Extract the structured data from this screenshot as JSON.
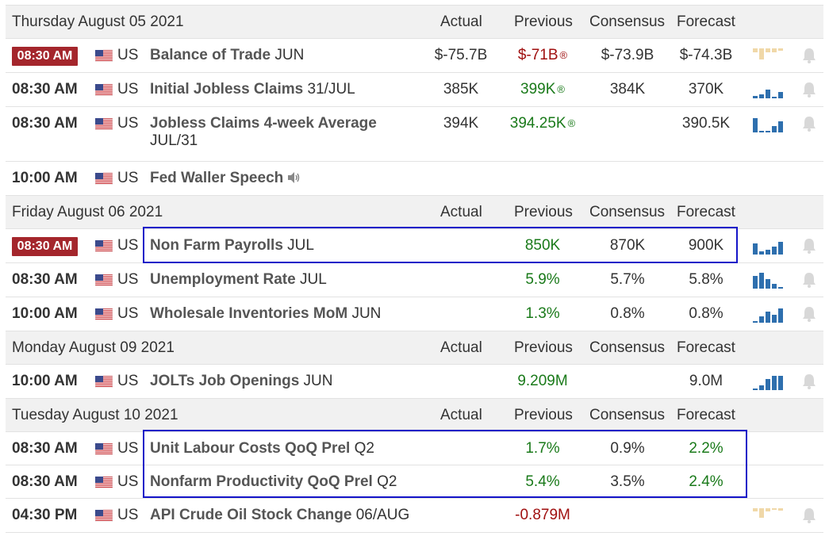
{
  "columns": {
    "actual": "Actual",
    "previous": "Previous",
    "consensus": "Consensus",
    "forecast": "Forecast"
  },
  "days": [
    {
      "date": "Thursday August 05 2021",
      "events": [
        {
          "time": "08:30 AM",
          "badge": true,
          "country": "US",
          "name": "Balance of Trade",
          "period": "JUN",
          "actual": "$-75.7B",
          "actual_color": "dark",
          "previous": "$-71B",
          "previous_color": "red",
          "revised": "®",
          "consensus": "$-73.9B",
          "forecast": "$-74.3B",
          "forecast_color": "dark",
          "spark": "beige-neg",
          "bell": true
        },
        {
          "time": "08:30 AM",
          "badge": false,
          "country": "US",
          "name": "Initial Jobless Claims",
          "period": "31/JUL",
          "actual": "385K",
          "actual_color": "dark",
          "previous": "399K",
          "previous_color": "green",
          "revised": "®",
          "consensus": "384K",
          "forecast": "370K",
          "forecast_color": "dark",
          "spark": "blue-a",
          "bell": true
        },
        {
          "time": "08:30 AM",
          "badge": false,
          "country": "US",
          "name": "Jobless Claims 4-week Average",
          "period": "JUL/31",
          "actual": "394K",
          "actual_color": "dark",
          "previous": "394.25K",
          "previous_color": "green",
          "revised": "®",
          "consensus": "",
          "forecast": "390.5K",
          "forecast_color": "dark",
          "spark": "blue-b",
          "bell": true,
          "tall": true
        },
        {
          "time": "10:00 AM",
          "badge": false,
          "country": "US",
          "name": "Fed Waller Speech",
          "period": "",
          "actual": "",
          "previous": "",
          "consensus": "",
          "forecast": "",
          "speaker": true,
          "spark": "",
          "bell": false
        }
      ]
    },
    {
      "date": "Friday August 06 2021",
      "events": [
        {
          "time": "08:30 AM",
          "badge": true,
          "country": "US",
          "name": "Non Farm Payrolls",
          "period": "JUL",
          "actual": "",
          "previous": "850K",
          "previous_color": "green",
          "consensus": "870K",
          "forecast": "900K",
          "forecast_color": "dark",
          "spark": "blue-c",
          "bell": true
        },
        {
          "time": "08:30 AM",
          "badge": false,
          "country": "US",
          "name": "Unemployment Rate",
          "period": "JUL",
          "actual": "",
          "previous": "5.9%",
          "previous_color": "green",
          "consensus": "5.7%",
          "forecast": "5.8%",
          "forecast_color": "dark",
          "spark": "blue-d",
          "bell": true
        },
        {
          "time": "10:00 AM",
          "badge": false,
          "country": "US",
          "name": "Wholesale Inventories MoM",
          "period": "JUN",
          "actual": "",
          "previous": "1.3%",
          "previous_color": "green",
          "consensus": "0.8%",
          "forecast": "0.8%",
          "forecast_color": "dark",
          "spark": "blue-e",
          "bell": true
        }
      ]
    },
    {
      "date": "Monday August 09 2021",
      "events": [
        {
          "time": "10:00 AM",
          "badge": false,
          "country": "US",
          "name": "JOLTs Job Openings",
          "period": "JUN",
          "actual": "",
          "previous": "9.209M",
          "previous_color": "green",
          "consensus": "",
          "forecast": "9.0M",
          "forecast_color": "dark",
          "spark": "blue-f",
          "bell": true
        }
      ]
    },
    {
      "date": "Tuesday August 10 2021",
      "events": [
        {
          "time": "08:30 AM",
          "badge": false,
          "country": "US",
          "name": "Unit Labour Costs QoQ Prel",
          "period": "Q2",
          "actual": "",
          "previous": "1.7%",
          "previous_color": "green",
          "consensus": "0.9%",
          "forecast": "2.2%",
          "forecast_color": "green",
          "spark": "",
          "bell": false,
          "compact": true
        },
        {
          "time": "08:30 AM",
          "badge": false,
          "country": "US",
          "name": "Nonfarm Productivity QoQ Prel",
          "period": "Q2",
          "actual": "",
          "previous": "5.4%",
          "previous_color": "green",
          "consensus": "3.5%",
          "forecast": "2.4%",
          "forecast_color": "green",
          "spark": "",
          "bell": false,
          "compact": true
        },
        {
          "time": "04:30 PM",
          "badge": false,
          "country": "US",
          "name": "API Crude Oil Stock Change",
          "period": "06/AUG",
          "actual": "",
          "previous": "-0.879M",
          "previous_color": "red",
          "consensus": "",
          "forecast": "",
          "spark": "beige-b",
          "bell": true
        }
      ]
    }
  ],
  "colors": {
    "badge": "#a4262c",
    "green": "#1a7a1a",
    "red": "#a01010",
    "spark_blue": "#2e6fae",
    "spark_beige": "#f0d8a8",
    "highlight": "#1414c8"
  }
}
